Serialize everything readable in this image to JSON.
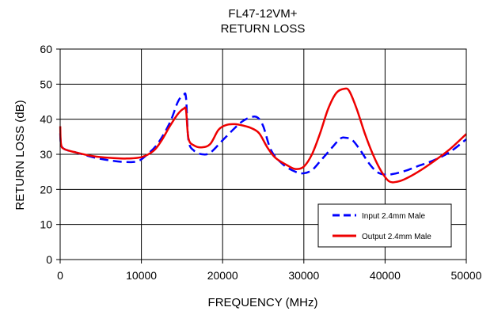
{
  "chart_data": {
    "type": "line",
    "title": "FL47-12VM+",
    "subtitle": "RETURN LOSS",
    "xlabel": "FREQUENCY (MHz)",
    "ylabel": "RETURN LOSS (dB)",
    "xlim": [
      0,
      50000
    ],
    "ylim": [
      0,
      60
    ],
    "xticks": [
      "0",
      "10000",
      "20000",
      "30000",
      "40000",
      "50000"
    ],
    "yticks": [
      "0",
      "10",
      "20",
      "30",
      "40",
      "50",
      "60"
    ],
    "grid": true,
    "legend_position": "bottom-right",
    "series": [
      {
        "name": "Input 2.4mm Male",
        "color": "#0000ff",
        "dash": "dashed",
        "points": [
          [
            10,
            36
          ],
          [
            100,
            33
          ],
          [
            500,
            31.5
          ],
          [
            2000,
            30.5
          ],
          [
            4000,
            29.2
          ],
          [
            6000,
            28.3
          ],
          [
            8000,
            27.8
          ],
          [
            9500,
            28
          ],
          [
            10500,
            29.5
          ],
          [
            12000,
            33
          ],
          [
            13500,
            39
          ],
          [
            14500,
            45
          ],
          [
            15200,
            47
          ],
          [
            15500,
            46
          ],
          [
            15800,
            34
          ],
          [
            16500,
            31
          ],
          [
            17500,
            30
          ],
          [
            18500,
            30.5
          ],
          [
            20000,
            34
          ],
          [
            21500,
            37.5
          ],
          [
            22500,
            39.5
          ],
          [
            23500,
            40.6
          ],
          [
            24300,
            40.5
          ],
          [
            25000,
            38
          ],
          [
            26000,
            31
          ],
          [
            27500,
            27
          ],
          [
            29000,
            25
          ],
          [
            30000,
            24.6
          ],
          [
            31000,
            25.5
          ],
          [
            32000,
            28
          ],
          [
            33500,
            32
          ],
          [
            34500,
            34.5
          ],
          [
            35200,
            34.7
          ],
          [
            36000,
            34
          ],
          [
            37000,
            31
          ],
          [
            38000,
            27.5
          ],
          [
            39000,
            25
          ],
          [
            40000,
            24.2
          ],
          [
            41000,
            24.4
          ],
          [
            42500,
            25.3
          ],
          [
            44000,
            26.6
          ],
          [
            46000,
            28.3
          ],
          [
            48000,
            30.7
          ],
          [
            50000,
            34.3
          ]
        ]
      },
      {
        "name": "Output 2.4mm Male",
        "color": "#ee0000",
        "dash": "solid",
        "points": [
          [
            10,
            38
          ],
          [
            100,
            33
          ],
          [
            500,
            31.5
          ],
          [
            2000,
            30.5
          ],
          [
            4000,
            29.5
          ],
          [
            6000,
            29
          ],
          [
            8000,
            28.8
          ],
          [
            10000,
            29.2
          ],
          [
            11500,
            31
          ],
          [
            12500,
            34
          ],
          [
            13500,
            38
          ],
          [
            14500,
            41.5
          ],
          [
            15200,
            43
          ],
          [
            15500,
            42.5
          ],
          [
            15800,
            34.5
          ],
          [
            16500,
            32.5
          ],
          [
            17500,
            32
          ],
          [
            18500,
            33
          ],
          [
            19500,
            37
          ],
          [
            20500,
            38.4
          ],
          [
            21500,
            38.6
          ],
          [
            22500,
            38.2
          ],
          [
            23500,
            37.5
          ],
          [
            24500,
            36
          ],
          [
            25500,
            32
          ],
          [
            26500,
            29
          ],
          [
            28000,
            26.8
          ],
          [
            29000,
            25.8
          ],
          [
            30000,
            26.5
          ],
          [
            31000,
            30
          ],
          [
            32000,
            36
          ],
          [
            33000,
            43
          ],
          [
            34000,
            47.5
          ],
          [
            35000,
            48.7
          ],
          [
            35600,
            48
          ],
          [
            36500,
            43
          ],
          [
            37500,
            36
          ],
          [
            38500,
            30
          ],
          [
            39500,
            25.3
          ],
          [
            40500,
            22.3
          ],
          [
            41500,
            22.2
          ],
          [
            42500,
            23
          ],
          [
            44000,
            24.9
          ],
          [
            46000,
            28
          ],
          [
            48000,
            31.5
          ],
          [
            50000,
            35.8
          ]
        ]
      }
    ]
  }
}
